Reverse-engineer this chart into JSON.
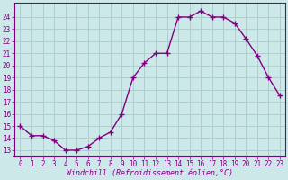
{
  "x": [
    0,
    1,
    2,
    3,
    4,
    5,
    6,
    7,
    8,
    9,
    10,
    11,
    12,
    13,
    14,
    15,
    16,
    17,
    18,
    19,
    20,
    21,
    22,
    23
  ],
  "y": [
    15,
    14.2,
    14.2,
    13.8,
    13,
    13,
    13.3,
    14,
    14.5,
    16,
    19,
    20.2,
    21,
    21,
    24,
    24,
    24.5,
    24,
    24,
    23.5,
    22.2,
    20.8,
    19,
    17.5
  ],
  "line_color": "#800080",
  "background_color": "#cce8e8",
  "grid_color": "#aacaca",
  "xlabel": "Windchill (Refroidissement éolien,°C)",
  "xlim": [
    -0.5,
    23.5
  ],
  "ylim": [
    12.5,
    25.2
  ],
  "xtick_labels": [
    "0",
    "1",
    "2",
    "3",
    "4",
    "5",
    "6",
    "7",
    "8",
    "9",
    "10",
    "11",
    "12",
    "13",
    "14",
    "15",
    "16",
    "17",
    "18",
    "19",
    "20",
    "21",
    "22",
    "23"
  ],
  "xticks": [
    0,
    1,
    2,
    3,
    4,
    5,
    6,
    7,
    8,
    9,
    10,
    11,
    12,
    13,
    14,
    15,
    16,
    17,
    18,
    19,
    20,
    21,
    22,
    23
  ],
  "yticks": [
    13,
    14,
    15,
    16,
    17,
    18,
    19,
    20,
    21,
    22,
    23,
    24
  ],
  "ytick_labels": [
    "13",
    "14",
    "15",
    "16",
    "17",
    "18",
    "19",
    "20",
    "21",
    "22",
    "23",
    "24"
  ],
  "tick_color": "#800080",
  "xlabel_color": "#800080",
  "marker_size": 4,
  "linewidth": 1.0,
  "tick_fontsize": 5.5,
  "xlabel_fontsize": 6.0
}
